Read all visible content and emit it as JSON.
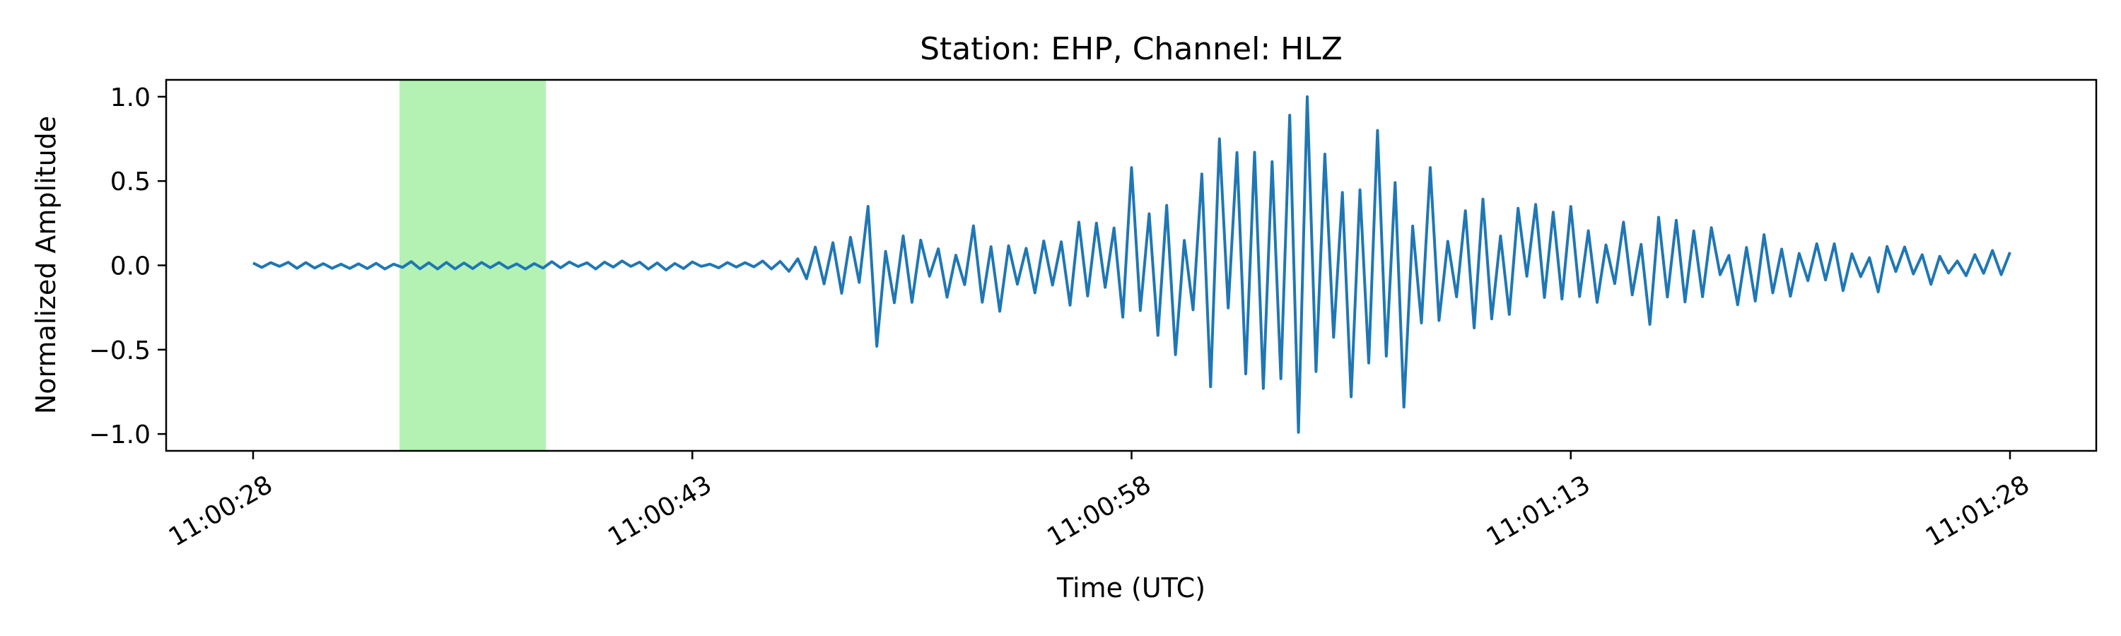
{
  "chart_data": {
    "type": "line",
    "title": "Station: EHP, Channel: HLZ",
    "xlabel": "Time (UTC)",
    "ylabel": "Normalized Amplitude",
    "x_range": [
      "11:00:28",
      "11:01:28"
    ],
    "ylim": [
      -1.1,
      1.1
    ],
    "xticks": [
      "11:00:28",
      "11:00:43",
      "11:00:58",
      "11:01:13",
      "11:01:28"
    ],
    "yticks": [
      -1.0,
      -0.5,
      0.0,
      0.5,
      1.0
    ],
    "ytick_labels": [
      "−1.0",
      "−0.5",
      "0.0",
      "0.5",
      "1.0"
    ],
    "grid": false,
    "highlight_window": {
      "start": "11:00:33",
      "end": "11:00:38",
      "color": "#b3f2b3"
    },
    "series": [
      {
        "color": "#1f77b4",
        "sample_interval_s": 0.3,
        "envelope_x": [
          "11:00:28",
          "11:00:46",
          "11:00:48",
          "11:00:56",
          "11:00:59",
          "11:01:04",
          "11:01:08",
          "11:01:14",
          "11:01:22",
          "11:01:28"
        ],
        "envelope_amp": [
          0.02,
          0.03,
          0.22,
          0.3,
          0.5,
          0.95,
          0.55,
          0.3,
          0.18,
          0.1
        ],
        "peaks": [
          {
            "x": "11:00:49",
            "y": -0.48
          },
          {
            "x": "11:00:49",
            "y": 0.35
          },
          {
            "x": "11:00:58",
            "y": 0.58
          },
          {
            "x": "11:01:00",
            "y": -0.72
          },
          {
            "x": "11:01:01",
            "y": 0.75
          },
          {
            "x": "11:01:02",
            "y": -0.73
          },
          {
            "x": "11:01:03",
            "y": -0.99
          },
          {
            "x": "11:01:04",
            "y": 1.0
          },
          {
            "x": "11:01:05",
            "y": -0.78
          },
          {
            "x": "11:01:06",
            "y": 0.8
          },
          {
            "x": "11:01:07",
            "y": -0.84
          },
          {
            "x": "11:01:08",
            "y": 0.58
          },
          {
            "x": "11:01:15",
            "y": -0.35
          }
        ]
      }
    ]
  }
}
